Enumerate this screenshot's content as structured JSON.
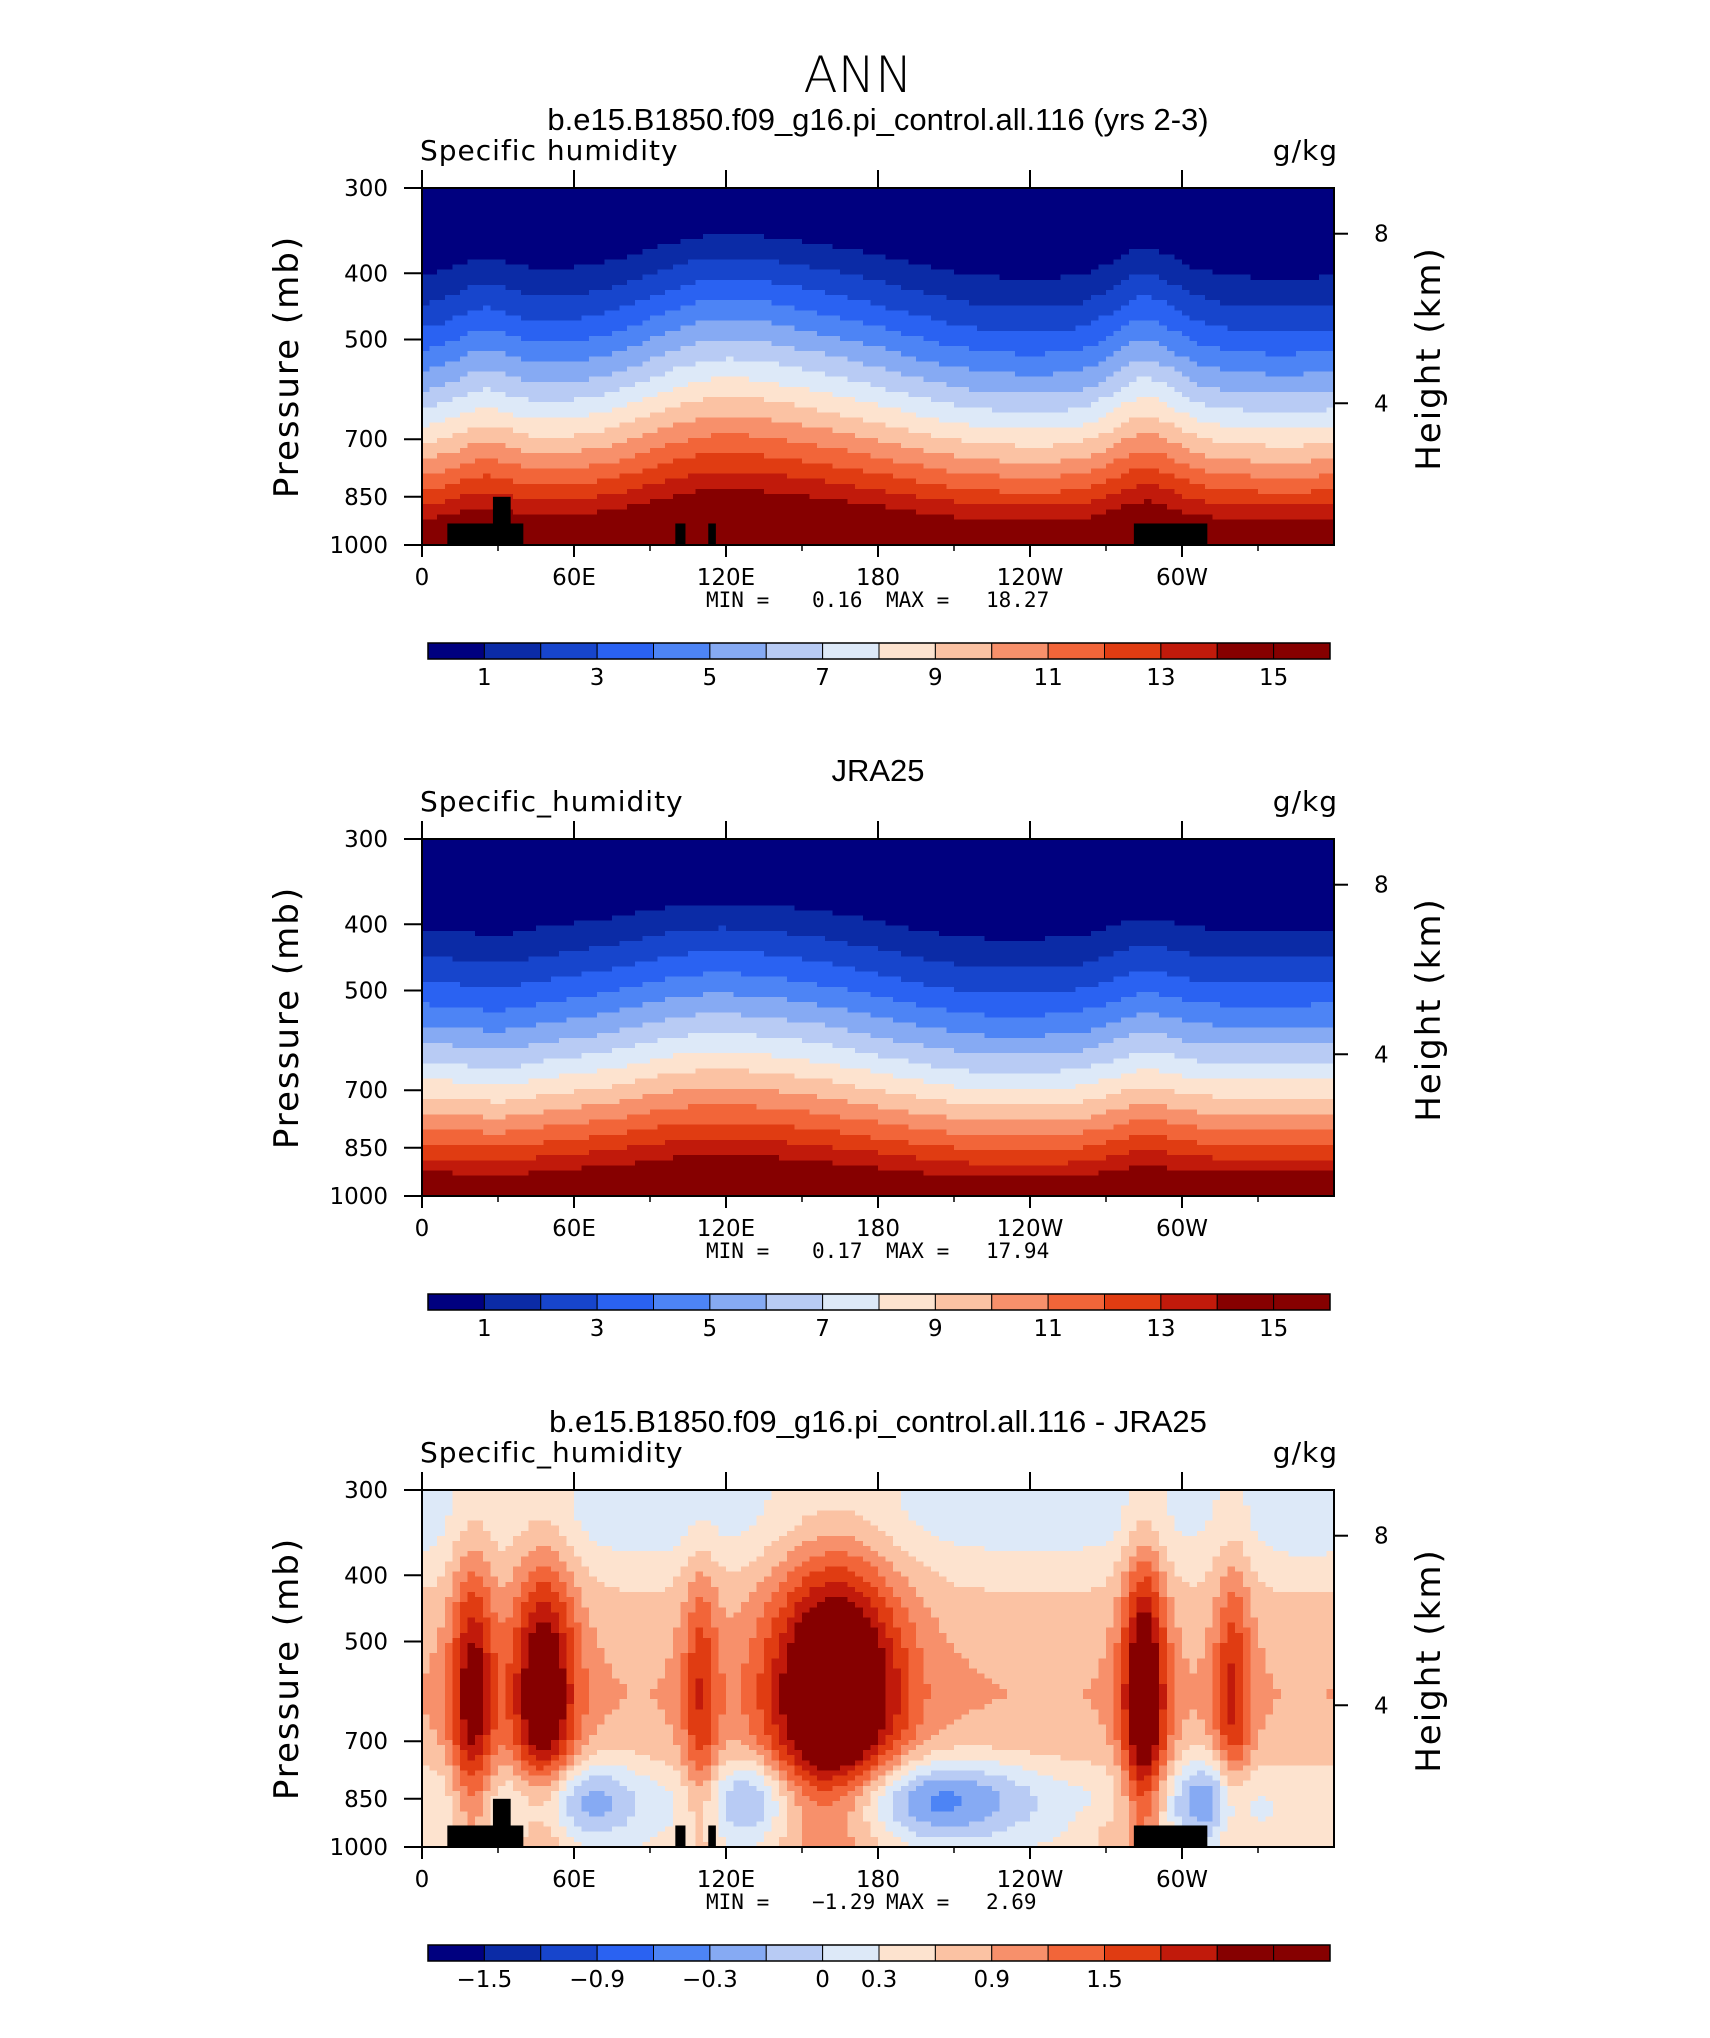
{
  "page": {
    "title": "ANN"
  },
  "colors": {
    "abs_scale": [
      "#00007f",
      "#0b2ba6",
      "#1745cc",
      "#2a62f2",
      "#4d84f5",
      "#86aaf3",
      "#b8cbf4",
      "#dde9f8",
      "#fde3cf",
      "#fbc2a3",
      "#f7906b",
      "#f26539",
      "#e03c12",
      "#c11a0b",
      "#860000"
    ],
    "diff_scale": [
      "#00007f",
      "#0b2ba6",
      "#1745cc",
      "#2a62f2",
      "#4d84f5",
      "#86aaf3",
      "#b8cbf4",
      "#dde9f8",
      "#fde3cf",
      "#fbc2a3",
      "#f7906b",
      "#f26539",
      "#e03c12",
      "#c11a0b",
      "#860000"
    ],
    "land_mask": "#000000"
  },
  "chart_data": [
    {
      "type": "heatmap",
      "title": "b.e15.B1850.f09_g16.pi_control.all.116 (yrs 2-3)",
      "variable": "Specific humidity",
      "units": "g/kg",
      "ylabel": "Pressure (mb)",
      "ylabel_right": "Height (km)",
      "x_ticks": [
        "0",
        "60E",
        "120E",
        "180",
        "120W",
        "60W"
      ],
      "y_ticks": [
        "300",
        "400",
        "500",
        "700",
        "850",
        "1000"
      ],
      "y_right_ticks": [
        "8",
        "4"
      ],
      "y_log_pressure": true,
      "stats": {
        "min_label": "MIN =",
        "min": "0.16",
        "max_label": "MAX =",
        "max": "18.27"
      },
      "levels": [
        1,
        2,
        3,
        4,
        5,
        6,
        7,
        8,
        9,
        10,
        11,
        12,
        13,
        14,
        15
      ],
      "colorbar_labels": [
        "1",
        "3",
        "5",
        "7",
        "9",
        "11",
        "13",
        "15"
      ],
      "profile_note": "longitude-pressure section; moist (>15 g/kg) near 1000 mb, dry (<1 g/kg) at 300-400 mb; deepest moisture near 150-160E and around 70-80W",
      "has_topography": true
    },
    {
      "type": "heatmap",
      "title": "JRA25",
      "variable": "Specific_humidity",
      "units": "g/kg",
      "ylabel": "Pressure (mb)",
      "ylabel_right": "Height (km)",
      "x_ticks": [
        "0",
        "60E",
        "120E",
        "180",
        "120W",
        "60W"
      ],
      "y_ticks": [
        "300",
        "400",
        "500",
        "700",
        "850",
        "1000"
      ],
      "y_right_ticks": [
        "8",
        "4"
      ],
      "y_log_pressure": true,
      "stats": {
        "min_label": "MIN =",
        "min": "0.17",
        "max_label": "MAX =",
        "max": "17.94"
      },
      "levels": [
        1,
        2,
        3,
        4,
        5,
        6,
        7,
        8,
        9,
        10,
        11,
        12,
        13,
        14,
        15
      ],
      "colorbar_labels": [
        "1",
        "3",
        "5",
        "7",
        "9",
        "11",
        "13",
        "15"
      ],
      "has_topography": false
    },
    {
      "type": "heatmap",
      "title": "b.e15.B1850.f09_g16.pi_control.all.116 - JRA25",
      "variable": "Specific_humidity",
      "units": "g/kg",
      "ylabel": "Pressure (mb)",
      "ylabel_right": "Height (km)",
      "x_ticks": [
        "0",
        "60E",
        "120E",
        "180",
        "120W",
        "60W"
      ],
      "y_ticks": [
        "300",
        "400",
        "500",
        "700",
        "850",
        "1000"
      ],
      "y_right_ticks": [
        "8",
        "4"
      ],
      "y_log_pressure": true,
      "stats": {
        "min_label": "MIN =",
        "min": "−1.29",
        "max_label": "MAX =",
        "max": "2.69"
      },
      "levels": [
        -2.1,
        -1.8,
        -1.5,
        -1.2,
        -0.9,
        -0.6,
        -0.3,
        0,
        0.3,
        0.6,
        0.9,
        1.2,
        1.5,
        1.8,
        2.1
      ],
      "colorbar_labels": [
        "−1.5",
        "−0.9",
        "−0.3",
        "0",
        "0.3",
        "0.9",
        "1.5"
      ],
      "has_topography": true
    }
  ]
}
